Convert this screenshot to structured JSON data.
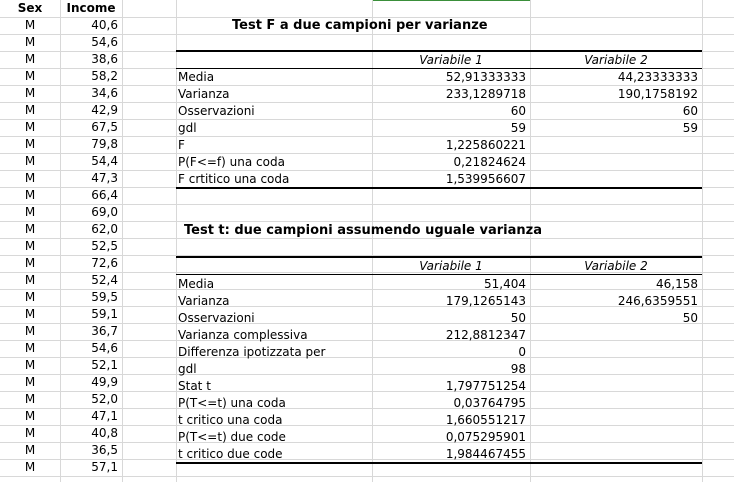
{
  "headers": {
    "sex": "Sex",
    "income": "Income"
  },
  "rows": [
    {
      "sex": "M",
      "income": "40,6"
    },
    {
      "sex": "M",
      "income": "54,6"
    },
    {
      "sex": "M",
      "income": "38,6"
    },
    {
      "sex": "M",
      "income": "58,2"
    },
    {
      "sex": "M",
      "income": "34,6"
    },
    {
      "sex": "M",
      "income": "42,9"
    },
    {
      "sex": "M",
      "income": "67,5"
    },
    {
      "sex": "M",
      "income": "79,8"
    },
    {
      "sex": "M",
      "income": "54,4"
    },
    {
      "sex": "M",
      "income": "47,3"
    },
    {
      "sex": "M",
      "income": "66,4"
    },
    {
      "sex": "M",
      "income": "69,0"
    },
    {
      "sex": "M",
      "income": "62,0"
    },
    {
      "sex": "M",
      "income": "52,5"
    },
    {
      "sex": "M",
      "income": "72,6"
    },
    {
      "sex": "M",
      "income": "52,4"
    },
    {
      "sex": "M",
      "income": "59,5"
    },
    {
      "sex": "M",
      "income": "59,1"
    },
    {
      "sex": "M",
      "income": "36,7"
    },
    {
      "sex": "M",
      "income": "54,6"
    },
    {
      "sex": "M",
      "income": "52,1"
    },
    {
      "sex": "M",
      "income": "49,9"
    },
    {
      "sex": "M",
      "income": "52,0"
    },
    {
      "sex": "M",
      "income": "47,1"
    },
    {
      "sex": "M",
      "income": "40,8"
    },
    {
      "sex": "M",
      "income": "36,5"
    },
    {
      "sex": "M",
      "income": "57,1"
    }
  ],
  "ftest": {
    "title": "Test F a due campioni per varianze",
    "col1": "Variabile 1",
    "col2": "Variabile 2",
    "rows": [
      {
        "label": "Media",
        "v1": "52,91333333",
        "v2": "44,23333333"
      },
      {
        "label": "Varianza",
        "v1": "233,1289718",
        "v2": "190,1758192"
      },
      {
        "label": "Osservazioni",
        "v1": "60",
        "v2": "60"
      },
      {
        "label": "gdl",
        "v1": "59",
        "v2": "59"
      },
      {
        "label": "F",
        "v1": "1,225860221",
        "v2": ""
      },
      {
        "label": "P(F<=f) una coda",
        "v1": "0,21824624",
        "v2": ""
      },
      {
        "label": "F crtitico una coda",
        "v1": "1,539956607",
        "v2": ""
      }
    ]
  },
  "ttest": {
    "title": "Test t: due campioni assumendo uguale varianza",
    "col1": "Variabile 1",
    "col2": "Variabile 2",
    "rows": [
      {
        "label": "Media",
        "v1": "51,404",
        "v2": "46,158"
      },
      {
        "label": "Varianza",
        "v1": "179,1265143",
        "v2": "246,6359551"
      },
      {
        "label": "Osservazioni",
        "v1": "50",
        "v2": "50"
      },
      {
        "label": "Varianza complessiva",
        "v1": "212,8812347",
        "v2": ""
      },
      {
        "label": "Differenza ipotizzata per",
        "v1": "0",
        "v2": ""
      },
      {
        "label": "gdl",
        "v1": "98",
        "v2": ""
      },
      {
        "label": "Stat t",
        "v1": "1,797751254",
        "v2": ""
      },
      {
        "label": "P(T<=t) una coda",
        "v1": "0,03764795",
        "v2": ""
      },
      {
        "label": "t critico una coda",
        "v1": "1,660551217",
        "v2": ""
      },
      {
        "label": "P(T<=t) due code",
        "v1": "0,075295901",
        "v2": ""
      },
      {
        "label": "t critico due code",
        "v1": "1,984467455",
        "v2": ""
      }
    ]
  }
}
